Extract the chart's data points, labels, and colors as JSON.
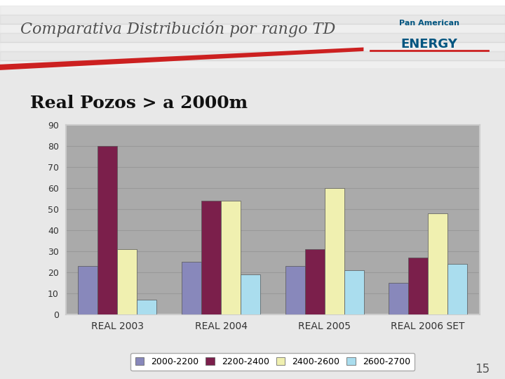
{
  "title": "Comparativa Distribución por rango TD",
  "subtitle": "Real Pozos > a 2000m",
  "page_number": "15",
  "categories": [
    "REAL 2003",
    "REAL 2004",
    "REAL 2005",
    "REAL 2006 SET"
  ],
  "series": {
    "2000-2200": [
      23,
      25,
      23,
      15
    ],
    "2200-2400": [
      80,
      54,
      31,
      27
    ],
    "2400-2600": [
      31,
      54,
      60,
      48
    ],
    "2600-2700": [
      7,
      19,
      21,
      24
    ]
  },
  "colors": {
    "2000-2200": "#8888bb",
    "2200-2400": "#7b1f4b",
    "2400-2600": "#f0f0b0",
    "2600-2700": "#aaddee"
  },
  "ylim": [
    0,
    90
  ],
  "yticks": [
    0,
    10,
    20,
    30,
    40,
    50,
    60,
    70,
    80,
    90
  ],
  "slide_bg_color": "#ffffff",
  "plot_bg_color": "#aaaaaa",
  "chart_frame_color": "#dddddd",
  "grid_color": "#888888",
  "title_color": "#505050",
  "axis_label_color": "#333333",
  "bar_width": 0.19,
  "title_fontsize": 16,
  "subtitle_fontsize": 18,
  "axis_fontsize": 9,
  "legend_fontsize": 9,
  "stripe_colors": [
    "#c8c8c8",
    "#b8b8b8"
  ]
}
